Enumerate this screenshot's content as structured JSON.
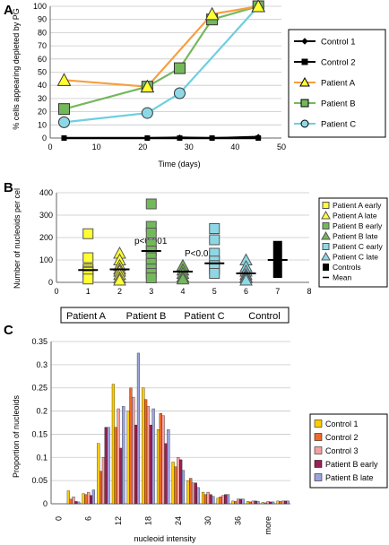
{
  "panels": {
    "a": {
      "letter": "A"
    },
    "b": {
      "letter": "B"
    },
    "c": {
      "letter": "C"
    }
  },
  "chart_data": [
    {
      "type": "line",
      "ylabel": "% cells appearing depleted by PG",
      "xlabel": "Time (days)",
      "xlim": [
        0,
        50
      ],
      "ylim": [
        0,
        100
      ],
      "x_ticks": [
        0,
        10,
        20,
        30,
        40,
        50
      ],
      "y_ticks": [
        0,
        10,
        20,
        30,
        40,
        50,
        60,
        70,
        80,
        90,
        100
      ],
      "grid": "horizontal",
      "legend_position": "right",
      "series": [
        {
          "name": "Control 1",
          "color": "#000000",
          "marker": "diamond",
          "x": [
            3,
            21,
            28,
            35,
            45
          ],
          "y": [
            0,
            0,
            0.5,
            0,
            1
          ]
        },
        {
          "name": "Control 2",
          "color": "#000000",
          "marker": "square",
          "x": [
            3,
            21,
            28,
            35,
            45
          ],
          "y": [
            0,
            0,
            0,
            0,
            0
          ]
        },
        {
          "name": "Patient A",
          "color": "#f5a040",
          "marker": "triangle",
          "fill": "#ffff33",
          "x": [
            3,
            21,
            35,
            45
          ],
          "y": [
            44,
            39,
            94,
            100
          ]
        },
        {
          "name": "Patient B",
          "color": "#74b85c",
          "marker": "square",
          "fill": "#74b85c",
          "x": [
            3,
            21,
            28,
            35,
            45
          ],
          "y": [
            22,
            39,
            53,
            90,
            100
          ]
        },
        {
          "name": "Patient C",
          "color": "#6fcfdd",
          "marker": "circle",
          "fill": "#8ed8e6",
          "x": [
            3,
            21,
            28,
            45
          ],
          "y": [
            12,
            19,
            34,
            100
          ]
        }
      ]
    },
    {
      "type": "scatter",
      "ylabel": "Number of nucleoids per cel",
      "xlim": [
        0,
        8
      ],
      "ylim": [
        0,
        400
      ],
      "x_ticks": [
        0,
        1,
        2,
        3,
        4,
        5,
        6,
        7,
        8
      ],
      "y_ticks": [
        0,
        100,
        200,
        300,
        400
      ],
      "grid": "horizontal",
      "legend_position": "right",
      "annotations": [
        {
          "text": "p<0.001",
          "x": 3.3,
          "y": 290
        },
        {
          "text": "P<0.01",
          "x": 5.4,
          "y": 225
        }
      ],
      "groups": [
        "Patient A",
        "Patient B",
        "Patient C",
        "Control"
      ],
      "series": [
        {
          "name": "Patient A early",
          "marker": "square",
          "color": "#ffff33",
          "x": 1,
          "values": [
            217,
            110,
            60,
            50,
            45,
            30,
            15
          ],
          "mean": 55
        },
        {
          "name": "Patient A late",
          "marker": "triangle",
          "color": "#ffff33",
          "x": 2,
          "values": [
            130,
            100,
            75,
            60,
            50,
            35,
            20,
            10
          ],
          "mean": 58
        },
        {
          "name": "Patient B early",
          "marker": "square",
          "color": "#74b85c",
          "x": 3,
          "values": [
            350,
            250,
            220,
            170,
            140,
            110,
            85,
            60,
            40,
            20
          ],
          "mean": 140
        },
        {
          "name": "Patient B late",
          "marker": "triangle",
          "color": "#74b85c",
          "x": 4,
          "values": [
            75,
            55,
            40,
            25,
            15
          ],
          "mean": 48
        },
        {
          "name": "Patient C early",
          "marker": "square",
          "color": "#8ed8e6",
          "x": 5,
          "values": [
            240,
            190,
            130,
            95,
            75,
            60,
            40
          ],
          "mean": 85
        },
        {
          "name": "Patient C late",
          "marker": "triangle",
          "color": "#8ed8e6",
          "x": 6,
          "values": [
            100,
            70,
            50,
            35,
            25,
            20,
            10
          ],
          "mean": 40
        },
        {
          "name": "Controls",
          "marker": "range",
          "color": "#000000",
          "x": 7,
          "min": 20,
          "max": 185,
          "mean": 100
        }
      ],
      "mean_label": "Mean"
    },
    {
      "type": "bar",
      "ylabel": "Proportion of nucleoids",
      "xlabel": "nucleoid intensity",
      "ylim": [
        0,
        0.35
      ],
      "y_ticks": [
        0,
        0.05,
        0.1,
        0.15,
        0.2,
        0.25,
        0.3,
        0.35
      ],
      "x_tick_labels": [
        "0",
        "6",
        "12",
        "18",
        "24",
        "30",
        "36",
        "more"
      ],
      "grid": "horizontal",
      "legend_position": "right",
      "series": [
        {
          "name": "Control 1",
          "color": "#ffcc00",
          "values": [
            0,
            0.028,
            0.022,
            0.13,
            0.258,
            0.2,
            0.25,
            0.16,
            0.09,
            0.05,
            0.025,
            0.012,
            0.006,
            0.005,
            0.003,
            0.006
          ]
        },
        {
          "name": "Control 2",
          "color": "#ee6a2a",
          "values": [
            0,
            0.01,
            0.02,
            0.07,
            0.165,
            0.25,
            0.225,
            0.195,
            0.08,
            0.055,
            0.02,
            0.015,
            0.005,
            0.004,
            0.002,
            0.005
          ]
        },
        {
          "name": "Control 3",
          "color": "#f4a0a0",
          "values": [
            0,
            0.015,
            0.025,
            0.1,
            0.205,
            0.23,
            0.21,
            0.19,
            0.1,
            0.045,
            0.025,
            0.018,
            0.01,
            0.006,
            0.005,
            0.006
          ]
        },
        {
          "name": "Patient B early",
          "color": "#9a2055",
          "values": [
            0,
            0.005,
            0.018,
            0.165,
            0.12,
            0.17,
            0.17,
            0.13,
            0.095,
            0.045,
            0.02,
            0.02,
            0.01,
            0.006,
            0.004,
            0.006
          ]
        },
        {
          "name": "Patient B late",
          "color": "#9aa2e0",
          "values": [
            0,
            0.004,
            0.03,
            0.165,
            0.21,
            0.325,
            0.205,
            0.16,
            0.072,
            0.035,
            0.016,
            0.02,
            0.01,
            0.005,
            0.004,
            0.006
          ]
        }
      ]
    }
  ]
}
